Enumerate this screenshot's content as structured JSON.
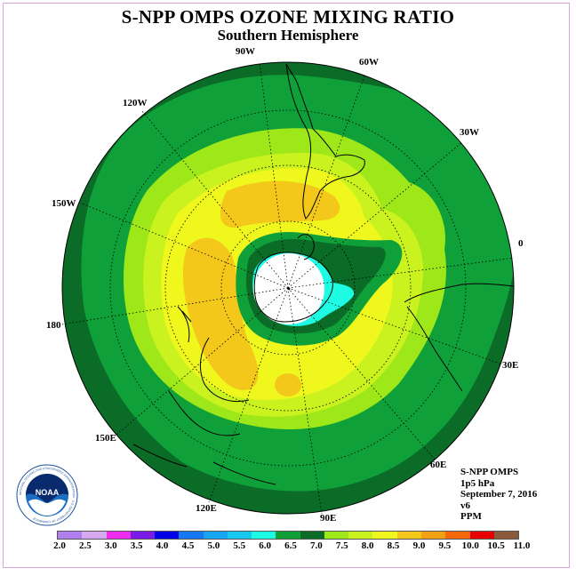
{
  "title": "S-NPP OMPS OZONE MIXING RATIO",
  "subtitle": "Southern Hemisphere",
  "longitude_labels": [
    {
      "text": "90W"
    },
    {
      "text": "60W"
    },
    {
      "text": "30W"
    },
    {
      "text": "0"
    },
    {
      "text": "30E"
    },
    {
      "text": "60E"
    },
    {
      "text": "90E"
    },
    {
      "text": "120E"
    },
    {
      "text": "150E"
    },
    {
      "text": "180"
    },
    {
      "text": "150W"
    },
    {
      "text": "120W"
    }
  ],
  "info": {
    "instrument": "S-NPP OMPS",
    "level": "1p5 hPa",
    "date": "September 7, 2016",
    "version": "v6",
    "units": "PPM"
  },
  "logo": {
    "text": "NOAA",
    "ring_text": "NATIONAL OCEANIC AND ATMOSPHERIC ADMINISTRATION · U.S. DEPARTMENT OF COMMERCE"
  },
  "colorbar": {
    "labels": [
      "2.0",
      "2.5",
      "3.0",
      "3.5",
      "4.0",
      "4.5",
      "5.0",
      "5.5",
      "6.0",
      "6.5",
      "7.0",
      "7.5",
      "8.0",
      "8.5",
      "9.0",
      "9.5",
      "10.0",
      "10.5",
      "11.0"
    ],
    "colors": [
      "#b27fef",
      "#d6a8f2",
      "#ee2ced",
      "#7a1ae6",
      "#0000e8",
      "#1778f2",
      "#16a4f3",
      "#19c8ef",
      "#1dfce3",
      "#10a03a",
      "#0a6c26",
      "#9ee819",
      "#c9f21e",
      "#f0f71d",
      "#f3c81a",
      "#f0a114",
      "#f46a0b",
      "#e60000",
      "#8b5a3c"
    ]
  },
  "map_colors": {
    "outer": "#0a6c26",
    "mid_green": "#10a03a",
    "yellowgreen": "#9ee819",
    "lime": "#c9f21e",
    "yellow": "#f0f71d",
    "orange": "#f3c81a",
    "cyan": "#1dfce3",
    "pole": "#ffffff"
  }
}
